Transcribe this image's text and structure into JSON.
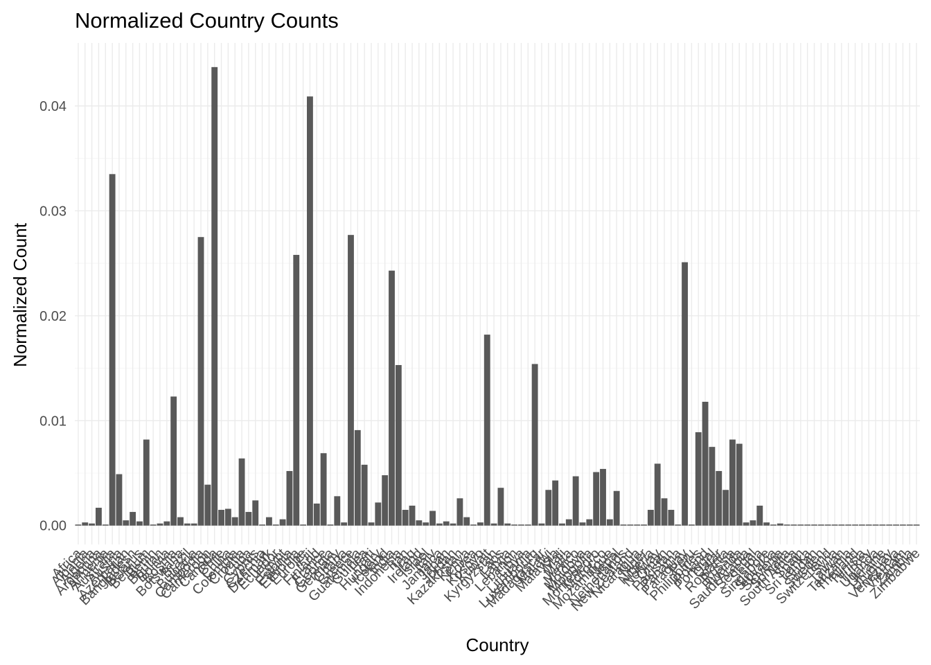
{
  "chart_data": {
    "type": "bar",
    "title": "Normalized Country Counts",
    "xlabel": "Country",
    "ylabel": "Normalized Count",
    "ylim": [
      -0.0018,
      0.046
    ],
    "yticks": [
      0,
      0.01,
      0.02,
      0.03,
      0.04
    ],
    "ytick_labels": [
      "0.00",
      "0.01",
      "0.02",
      "0.03",
      "0.04"
    ],
    "grid": true,
    "legend": "none",
    "bar_color": "#595959",
    "categories": [
      "Africa",
      "Albania",
      "Algeria",
      "Argentina",
      "Armenia",
      "Australia",
      "Austria",
      "Azerbaijan",
      "Bangladesh",
      "Belarus",
      "Belgium",
      "Benin",
      "Bhutan",
      "Bolivia",
      "Bosnia",
      "Botswana",
      "Brazil",
      "Bulgaria",
      "Cambodia",
      "Cameroon",
      "Canada",
      "Chile",
      "China",
      "Colombia",
      "Croatia",
      "Cuba",
      "Cyprus",
      "Czechia",
      "Denmark",
      "Ecuador",
      "Egypt",
      "Estonia",
      "Ethiopia",
      "Europe",
      "Fiji",
      "Finland",
      "France",
      "Georgia",
      "Germany",
      "Ghana",
      "Greece",
      "Guatemala",
      "Guinea",
      "Haiti",
      "Hungary",
      "Iceland",
      "India",
      "Indonesia",
      "Iran",
      "Iraq",
      "Ireland",
      "Israel",
      "Italy",
      "Jamaica",
      "Japan",
      "Jordan",
      "Kazakhstan",
      "Kenya",
      "Korea",
      "Kosovo",
      "Kuwait",
      "Kyrgyzstan",
      "Laos",
      "Latvia",
      "Lebanon",
      "Libya",
      "Lithuania",
      "Luxembourg",
      "Madagascar",
      "Malawi",
      "Malaysia",
      "Mali",
      "Malta",
      "Mexico",
      "Moldova",
      "Mongolia",
      "Montenegro",
      "Morocco",
      "Mozambique",
      "Nepal",
      "Netherlands",
      "New Zealand",
      "Nicaragua",
      "Niger",
      "Nigeria",
      "Norway",
      "Oman",
      "Pakistan",
      "Panama",
      "Paraguay",
      "Peru",
      "Philippines",
      "Poland",
      "Portugal",
      "Qatar",
      "Romania",
      "Russia",
      "Rwanda",
      "Saudi Arabia",
      "Senegal",
      "Serbia",
      "Singapore",
      "Slovakia",
      "Slovenia",
      "Somalia",
      "South Africa",
      "Spain",
      "Sri Lanka",
      "Sudan",
      "Sweden",
      "Switzerland",
      "Syria",
      "Taiwan",
      "Tanzania",
      "Thailand",
      "Tunisia",
      "Turkey",
      "Uganda",
      "Ukraine",
      "Uruguay",
      "Venezuela",
      "Vietnam",
      "Zambia",
      "Zimbabwe"
    ],
    "values": [
      0.0001,
      0.0003,
      0.0002,
      0.0017,
      0.0001,
      0.0335,
      0.0049,
      0.0005,
      0.0013,
      0.0004,
      0.0082,
      0.0001,
      0.0002,
      0.0004,
      0.0123,
      0.0008,
      0.0002,
      0.0002,
      0.0275,
      0.0039,
      0.0437,
      0.0015,
      0.0016,
      0.0008,
      0.0064,
      0.0013,
      0.0024,
      0.0001,
      0.0008,
      0.0001,
      0.0006,
      0.0052,
      0.0258,
      0.0001,
      0.0409,
      0.0021,
      0.0069,
      0.0001,
      0.0028,
      0.0003,
      0.0277,
      0.0091,
      0.0058,
      0.0003,
      0.0022,
      0.0048,
      0.0243,
      0.0153,
      0.0015,
      0.0019,
      0.0005,
      0.0003,
      0.0014,
      0.0002,
      0.0004,
      0.0002,
      0.0026,
      0.0008,
      0.0001,
      0.0003,
      0.0182,
      0.0002,
      0.0036,
      0.0002,
      0.0001,
      0.0001,
      0.0001,
      0.0154,
      0.0002,
      0.0034,
      0.0043,
      0.0002,
      0.0006,
      0.0047,
      0.0003,
      0.0006,
      0.0051,
      0.0054,
      0.0006,
      0.0033,
      0.0001,
      0.0001,
      0.0001,
      0.0001,
      0.0015,
      0.0059,
      0.0026,
      0.0015,
      0.0001,
      0.0251,
      0.0001,
      0.0089,
      0.0118,
      0.0075,
      0.0052,
      0.0034,
      0.0082,
      0.0078,
      0.0003,
      0.0005,
      0.0019,
      0.0003,
      0.0001,
      0.0002,
      0.0001,
      0.0001,
      0.0001,
      0.0001,
      0.0001,
      0.0001,
      0.0001,
      0.0001,
      0.0001,
      0.0001,
      0.0001,
      0.0001,
      0.0001,
      0.0001,
      0.0001,
      0.0001,
      0.0001,
      0.0001,
      0.0001,
      0.0001
    ]
  }
}
